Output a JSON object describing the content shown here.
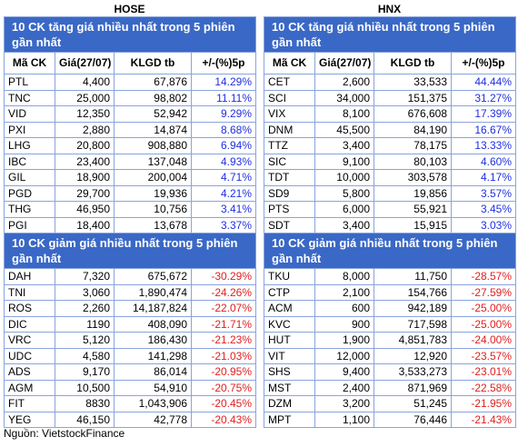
{
  "exchanges": [
    {
      "name": "HOSE",
      "columns": [
        "Mã CK",
        "Giá(27/07)",
        "KLGD tb",
        "+/-(%)5p"
      ],
      "gainers": {
        "title": "10 CK tăng giá nhiều nhất trong 5 phiên gần nhất",
        "rows": [
          [
            "PTL",
            "4,400",
            "67,876",
            "14.29%"
          ],
          [
            "TNC",
            "25,000",
            "98,802",
            "11.11%"
          ],
          [
            "VID",
            "12,350",
            "52,942",
            "9.29%"
          ],
          [
            "PXI",
            "2,880",
            "14,874",
            "8.68%"
          ],
          [
            "LHG",
            "20,800",
            "908,880",
            "6.94%"
          ],
          [
            "IBC",
            "23,400",
            "137,048",
            "4.93%"
          ],
          [
            "GIL",
            "18,900",
            "200,004",
            "4.71%"
          ],
          [
            "PGD",
            "29,700",
            "19,936",
            "4.21%"
          ],
          [
            "THG",
            "46,950",
            "10,756",
            "3.41%"
          ],
          [
            "PGI",
            "18,400",
            "13,678",
            "3.37%"
          ]
        ]
      },
      "losers": {
        "title": "10 CK giảm giá nhiều nhất trong 5 phiên gần nhất",
        "rows": [
          [
            "DAH",
            "7,320",
            "675,672",
            "-30.29%"
          ],
          [
            "TNI",
            "3,060",
            "1,890,474",
            "-24.26%"
          ],
          [
            "ROS",
            "2,260",
            "14,187,824",
            "-22.07%"
          ],
          [
            "DIC",
            "1190",
            "408,090",
            "-21.71%"
          ],
          [
            "VRC",
            "5,120",
            "186,430",
            "-21.23%"
          ],
          [
            "UDC",
            "4,580",
            "141,298",
            "-21.03%"
          ],
          [
            "ADS",
            "9,170",
            "86,014",
            "-20.95%"
          ],
          [
            "AGM",
            "10,500",
            "54,910",
            "-20.75%"
          ],
          [
            "FIT",
            "8830",
            "1,043,906",
            "-20.45%"
          ],
          [
            "YEG",
            "46,150",
            "42,778",
            "-20.43%"
          ]
        ]
      }
    },
    {
      "name": "HNX",
      "columns": [
        "Mã CK",
        "Giá(27/07)",
        "KLGD tb",
        "+/-(%)5p"
      ],
      "gainers": {
        "title": "10 CK tăng giá nhiều nhất trong 5 phiên gần nhất",
        "rows": [
          [
            "CET",
            "2,600",
            "33,533",
            "44.44%"
          ],
          [
            "SCI",
            "34,000",
            "151,375",
            "31.27%"
          ],
          [
            "VIX",
            "8,100",
            "676,608",
            "17.39%"
          ],
          [
            "DNM",
            "45,500",
            "84,190",
            "16.67%"
          ],
          [
            "TTZ",
            "3,400",
            "78,175",
            "13.33%"
          ],
          [
            "SIC",
            "9,100",
            "80,103",
            "4.60%"
          ],
          [
            "TDT",
            "10,000",
            "303,578",
            "4.17%"
          ],
          [
            "SD9",
            "5,800",
            "19,856",
            "3.57%"
          ],
          [
            "PTS",
            "6,000",
            "55,921",
            "3.45%"
          ],
          [
            "SDT",
            "3,400",
            "15,915",
            "3.03%"
          ]
        ]
      },
      "losers": {
        "title": "10 CK giảm giá nhiều nhất trong 5 phiên gần nhất",
        "rows": [
          [
            "TKU",
            "8,000",
            "11,750",
            "-28.57%"
          ],
          [
            "CTP",
            "2,100",
            "154,766",
            "-27.59%"
          ],
          [
            "ACM",
            "600",
            "942,189",
            "-25.00%"
          ],
          [
            "KVC",
            "900",
            "717,598",
            "-25.00%"
          ],
          [
            "HUT",
            "1,900",
            "4,851,783",
            "-24.00%"
          ],
          [
            "VIT",
            "12,000",
            "12,920",
            "-23.57%"
          ],
          [
            "SHS",
            "9,400",
            "3,533,273",
            "-23.01%"
          ],
          [
            "MST",
            "2,400",
            "871,969",
            "-22.58%"
          ],
          [
            "DZM",
            "3,200",
            "51,245",
            "-21.95%"
          ],
          [
            "MPT",
            "1,100",
            "76,446",
            "-21.43%"
          ]
        ]
      }
    }
  ],
  "source": "Nguồn: VietstockFinance"
}
